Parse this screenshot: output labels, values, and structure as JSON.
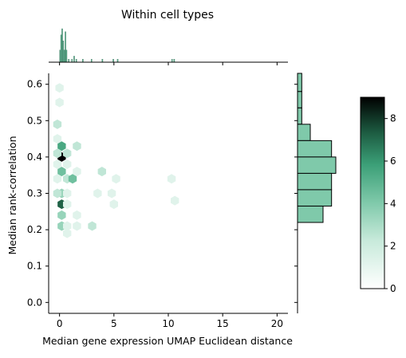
{
  "chart_data": {
    "type": "hexbin-joint",
    "title": "Within cell types",
    "xlabel": "Median gene expression UMAP Euclidean distance",
    "ylabel": "Median rank-correlation",
    "xlim": [
      -1,
      21
    ],
    "ylim": [
      -0.03,
      0.63
    ],
    "xticks": [
      "0",
      "5",
      "10",
      "15",
      "20"
    ],
    "xtick_values": [
      0,
      5,
      10,
      15,
      20
    ],
    "yticks": [
      "0.0",
      "0.1",
      "0.2",
      "0.3",
      "0.4",
      "0.5",
      "0.6"
    ],
    "ytick_values": [
      0.0,
      0.1,
      0.2,
      0.3,
      0.4,
      0.5,
      0.6
    ],
    "colormap": [
      "#ffffff",
      "#8fd0b4",
      "#3b9f77",
      "#1c5a40",
      "#000000"
    ],
    "colorbar": {
      "ticks": [
        "0",
        "2",
        "4",
        "6",
        "8"
      ],
      "tick_values": [
        0,
        2,
        4,
        6,
        8
      ],
      "max": 9
    },
    "hex_cells": [
      {
        "x": 0.0,
        "y": 0.59,
        "count": 1
      },
      {
        "x": 0.0,
        "y": 0.55,
        "count": 1
      },
      {
        "x": -0.2,
        "y": 0.49,
        "count": 2
      },
      {
        "x": -0.2,
        "y": 0.45,
        "count": 1
      },
      {
        "x": 0.2,
        "y": 0.43,
        "count": 5
      },
      {
        "x": 0.2,
        "y": 0.4,
        "count": 9
      },
      {
        "x": -0.2,
        "y": 0.41,
        "count": 2
      },
      {
        "x": 0.7,
        "y": 0.41,
        "count": 2
      },
      {
        "x": 0.7,
        "y": 0.38,
        "count": 1
      },
      {
        "x": -0.2,
        "y": 0.38,
        "count": 1
      },
      {
        "x": 0.2,
        "y": 0.36,
        "count": 4
      },
      {
        "x": 0.7,
        "y": 0.34,
        "count": 2
      },
      {
        "x": 1.6,
        "y": 0.43,
        "count": 2
      },
      {
        "x": 1.6,
        "y": 0.36,
        "count": 1
      },
      {
        "x": 1.2,
        "y": 0.34,
        "count": 4
      },
      {
        "x": -0.2,
        "y": 0.34,
        "count": 1
      },
      {
        "x": 0.2,
        "y": 0.3,
        "count": 3
      },
      {
        "x": -0.2,
        "y": 0.3,
        "count": 2
      },
      {
        "x": 0.2,
        "y": 0.27,
        "count": 7
      },
      {
        "x": 0.7,
        "y": 0.3,
        "count": 1
      },
      {
        "x": 0.7,
        "y": 0.27,
        "count": 1
      },
      {
        "x": 0.2,
        "y": 0.24,
        "count": 3
      },
      {
        "x": 1.6,
        "y": 0.24,
        "count": 1
      },
      {
        "x": 1.6,
        "y": 0.21,
        "count": 1
      },
      {
        "x": 0.2,
        "y": 0.21,
        "count": 3
      },
      {
        "x": 0.7,
        "y": 0.21,
        "count": 1
      },
      {
        "x": 0.7,
        "y": 0.19,
        "count": 1
      },
      {
        "x": 3.0,
        "y": 0.21,
        "count": 2
      },
      {
        "x": 3.5,
        "y": 0.3,
        "count": 1
      },
      {
        "x": 3.9,
        "y": 0.36,
        "count": 2
      },
      {
        "x": 4.8,
        "y": 0.3,
        "count": 1
      },
      {
        "x": 5.2,
        "y": 0.34,
        "count": 1
      },
      {
        "x": 5.0,
        "y": 0.27,
        "count": 1
      },
      {
        "x": 10.3,
        "y": 0.34,
        "count": 1
      },
      {
        "x": 10.6,
        "y": 0.28,
        "count": 1
      }
    ],
    "x_marginal_hist": {
      "bin_edges": [
        0.0,
        0.1,
        0.2,
        0.3,
        0.4,
        0.5,
        0.6,
        0.7,
        0.8,
        0.9,
        1.0,
        1.1,
        1.2,
        1.3,
        1.4,
        1.5,
        1.6,
        1.7,
        1.8,
        1.9,
        2.0
      ],
      "counts_note": "",
      "bars": [
        {
          "x": 0.0,
          "count": 4
        },
        {
          "x": 0.1,
          "count": 9
        },
        {
          "x": 0.2,
          "count": 11
        },
        {
          "x": 0.3,
          "count": 7
        },
        {
          "x": 0.4,
          "count": 4
        },
        {
          "x": 0.5,
          "count": 10
        },
        {
          "x": 0.6,
          "count": 4
        },
        {
          "x": 0.8,
          "count": 1
        },
        {
          "x": 1.1,
          "count": 1
        },
        {
          "x": 1.3,
          "count": 2
        },
        {
          "x": 1.5,
          "count": 1
        },
        {
          "x": 2.1,
          "count": 1
        },
        {
          "x": 2.9,
          "count": 1
        },
        {
          "x": 3.9,
          "count": 1
        },
        {
          "x": 4.9,
          "count": 1
        },
        {
          "x": 5.3,
          "count": 1
        },
        {
          "x": 10.3,
          "count": 1
        },
        {
          "x": 10.5,
          "count": 1
        }
      ]
    },
    "y_marginal_hist": {
      "bars": [
        {
          "y0": 0.58,
          "y1": 0.63,
          "count": 1
        },
        {
          "y0": 0.535,
          "y1": 0.58,
          "count": 1
        },
        {
          "y0": 0.49,
          "y1": 0.535,
          "count": 1
        },
        {
          "y0": 0.445,
          "y1": 0.49,
          "count": 3
        },
        {
          "y0": 0.4,
          "y1": 0.445,
          "count": 8
        },
        {
          "y0": 0.355,
          "y1": 0.4,
          "count": 9
        },
        {
          "y0": 0.31,
          "y1": 0.355,
          "count": 8
        },
        {
          "y0": 0.265,
          "y1": 0.31,
          "count": 8
        },
        {
          "y0": 0.22,
          "y1": 0.265,
          "count": 6
        }
      ],
      "max_count": 12
    }
  }
}
